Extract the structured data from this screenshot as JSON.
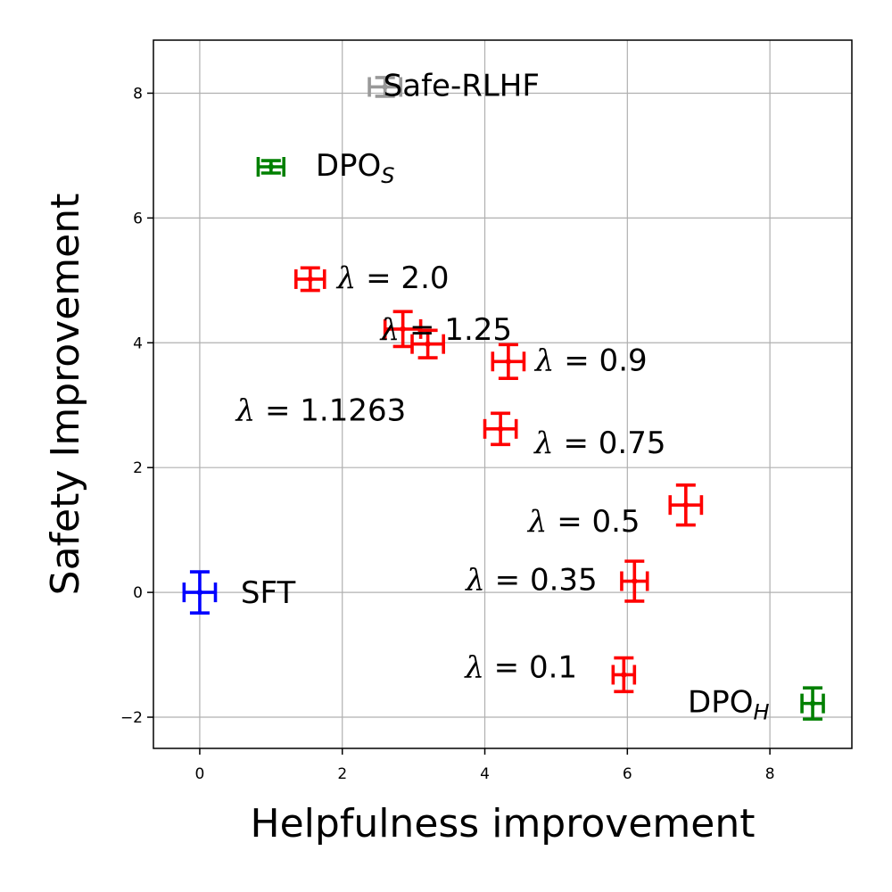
{
  "chart_data": {
    "type": "scatter",
    "xlabel": "Helpfulness improvement",
    "ylabel": "Safety Improvement",
    "xlim": [
      -0.65,
      9.15
    ],
    "ylim": [
      -2.5,
      8.85
    ],
    "xticks": [
      0,
      2,
      4,
      6,
      8
    ],
    "yticks": [
      -2,
      0,
      2,
      4,
      6,
      8
    ],
    "grid": true,
    "points": [
      {
        "id": "sft",
        "label": "SFT",
        "x": 0.0,
        "y": 0.0,
        "xerr": 0.22,
        "yerr": 0.33,
        "color": "#0000ff"
      },
      {
        "id": "dpo-s",
        "label": "DPO",
        "sub": "S",
        "x": 1.0,
        "y": 6.82,
        "xerr": 0.18,
        "yerr": 0.1,
        "color": "#008000"
      },
      {
        "id": "dpo-h",
        "label": "DPO",
        "sub": "H",
        "x": 8.6,
        "y": -1.78,
        "xerr": 0.15,
        "yerr": 0.25,
        "color": "#008000"
      },
      {
        "id": "safe-rlhf",
        "label": "Safe-RLHF",
        "x": 2.6,
        "y": 8.1,
        "xerr": 0.22,
        "yerr": 0.15,
        "color": "#999999"
      },
      {
        "id": "lambda-2-0",
        "lambda": "2.0",
        "x": 1.55,
        "y": 5.02,
        "xerr": 0.2,
        "yerr": 0.18,
        "color": "#ff0000"
      },
      {
        "id": "lambda-1-25",
        "lambda": "1.25",
        "x": 2.85,
        "y": 4.22,
        "xerr": 0.25,
        "yerr": 0.28,
        "color": "#ff0000"
      },
      {
        "id": "lambda-1-1263",
        "lambda": "1.1263",
        "x": 3.2,
        "y": 3.98,
        "xerr": 0.22,
        "yerr": 0.22,
        "color": "#ff0000"
      },
      {
        "id": "lambda-0-9",
        "lambda": "0.9",
        "x": 4.33,
        "y": 3.7,
        "xerr": 0.22,
        "yerr": 0.27,
        "color": "#ff0000"
      },
      {
        "id": "lambda-0-75",
        "lambda": "0.75",
        "x": 4.22,
        "y": 2.62,
        "xerr": 0.22,
        "yerr": 0.25,
        "color": "#ff0000"
      },
      {
        "id": "lambda-0-5",
        "lambda": "0.5",
        "x": 6.82,
        "y": 1.4,
        "xerr": 0.22,
        "yerr": 0.32,
        "color": "#ff0000"
      },
      {
        "id": "lambda-0-35",
        "lambda": "0.35",
        "x": 6.1,
        "y": 0.18,
        "xerr": 0.18,
        "yerr": 0.32,
        "color": "#ff0000"
      },
      {
        "id": "lambda-0-1",
        "lambda": "0.1",
        "x": 5.95,
        "y": -1.32,
        "xerr": 0.15,
        "yerr": 0.27,
        "color": "#ff0000"
      }
    ]
  }
}
